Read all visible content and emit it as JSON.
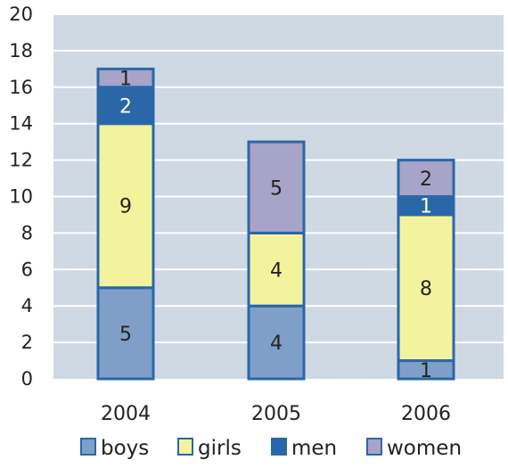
{
  "chart_data": {
    "type": "bar",
    "stacked": true,
    "title": "",
    "xlabel": "",
    "ylabel": "",
    "categories": [
      "2004",
      "2005",
      "2006"
    ],
    "ylim": [
      0,
      20
    ],
    "yticks": [
      "0",
      "2",
      "4",
      "6",
      "8",
      "10",
      "12",
      "14",
      "16",
      "18",
      "20"
    ],
    "grid": true,
    "legend_position": "bottom",
    "series": [
      {
        "name": "boys",
        "values": [
          5,
          4,
          1
        ],
        "labels": [
          "5",
          "4",
          "1"
        ],
        "color": "#7f9fc9"
      },
      {
        "name": "girls",
        "values": [
          9,
          4,
          8
        ],
        "labels": [
          "9",
          "4",
          "8"
        ],
        "color": "#f4f39d"
      },
      {
        "name": "men",
        "values": [
          2,
          0,
          1
        ],
        "labels": [
          "2",
          "",
          "1"
        ],
        "color": "#2a67a8"
      },
      {
        "name": "women",
        "values": [
          1,
          5,
          2
        ],
        "labels": [
          "1",
          "5",
          "2"
        ],
        "color": "#a8a3c9"
      }
    ],
    "colors": {
      "plot_background": "#cfd9e3",
      "gridline": "#ffffff",
      "bar_outline": "#2a67a8"
    }
  }
}
